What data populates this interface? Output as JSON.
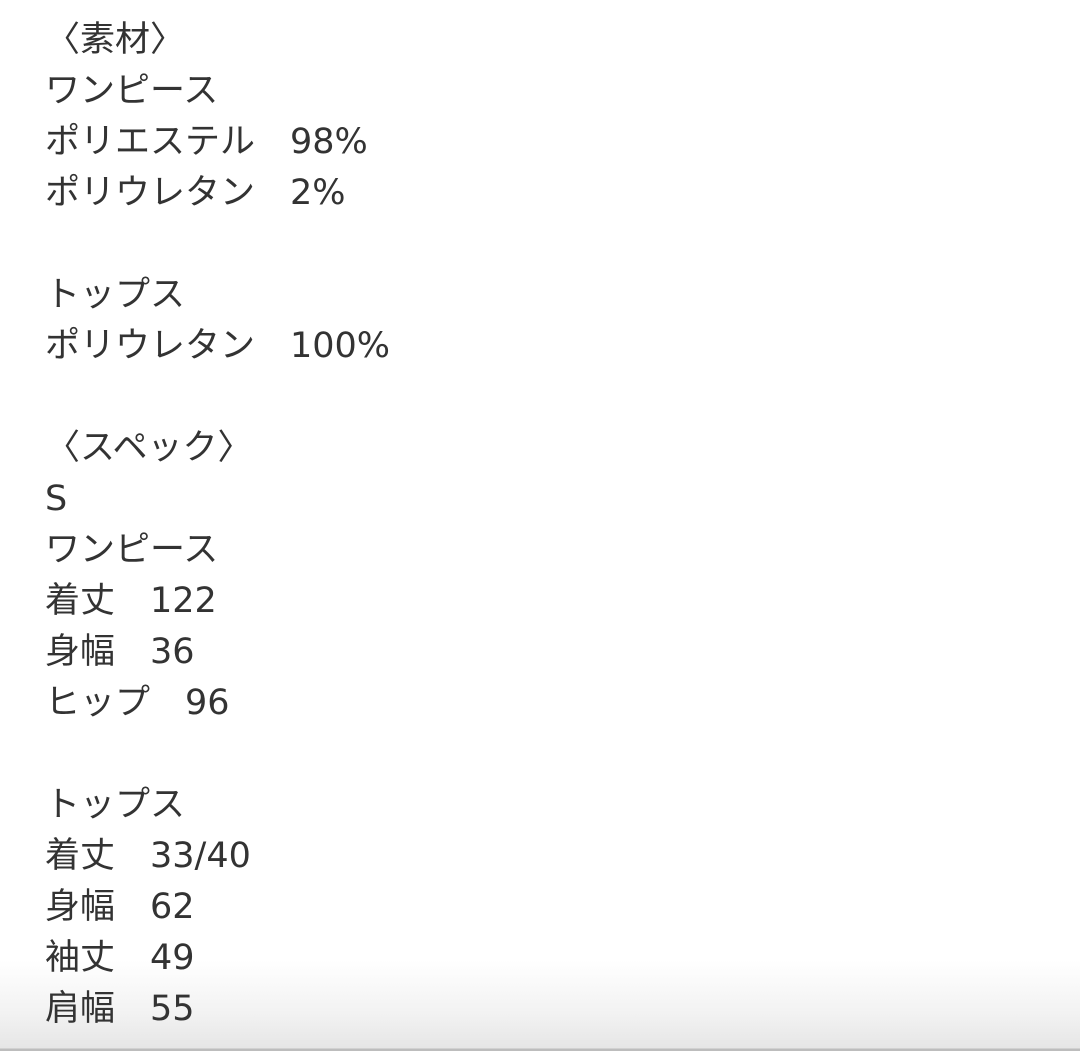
{
  "lines": [
    "〈素材〉",
    "ワンピース",
    "ポリエステル　98%",
    "ポリウレタン　2%",
    "",
    "トップス",
    "ポリウレタン　100%",
    "",
    "〈スペック〉",
    "S",
    "ワンピース",
    "着丈　122",
    "身幅　36",
    "ヒップ　96",
    "",
    "トップス",
    "着丈　33/40",
    "身幅　62",
    "袖丈　49",
    "肩幅　55"
  ]
}
